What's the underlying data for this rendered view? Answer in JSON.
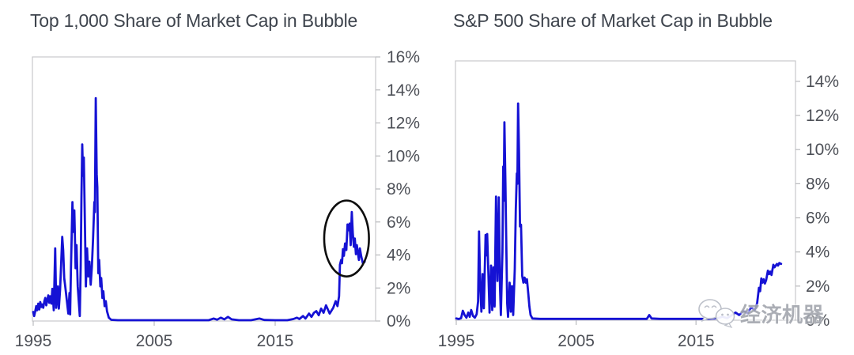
{
  "watermark": {
    "text": "经济机器",
    "icon": "wechat-icon",
    "color": "#a2a6ae"
  },
  "colors": {
    "background": "#ffffff",
    "line_blue": "#1512d4",
    "frame_gray": "#c7c8cb",
    "tick_gray": "#b9babd",
    "title_text": "#3e444d",
    "tick_text": "#4d5057",
    "annotation_black": "#0d0d0d"
  },
  "chart_data": [
    {
      "type": "line",
      "title": "Top 1,000 Share of Market Cap in Bubble",
      "line_color": "#1512d4",
      "x_range": [
        1995,
        2023.3
      ],
      "y_range_pct": [
        0,
        16
      ],
      "grid": false,
      "legend": "none",
      "y_ticks": [
        [
          0,
          "0%"
        ],
        [
          2,
          "2%"
        ],
        [
          4,
          "4%"
        ],
        [
          6,
          "6%"
        ],
        [
          8,
          "8%"
        ],
        [
          10,
          "10%"
        ],
        [
          12,
          "12%"
        ],
        [
          14,
          "14%"
        ],
        [
          16,
          "16%"
        ]
      ],
      "x_ticks": [
        [
          1995,
          "1995"
        ],
        [
          2005,
          "2005"
        ],
        [
          2015,
          "2015"
        ]
      ],
      "annotation": {
        "shape": "ellipse",
        "purpose": "highlights 2020-2022 rise in bubble share",
        "center_year": 2020.9,
        "center_pct": 5.0,
        "radius_years": 1.85,
        "radius_pct": 2.3,
        "color": "#0d0d0d"
      },
      "series": [
        [
          1995.0,
          0.55
        ],
        [
          1995.08,
          0.3
        ],
        [
          1995.17,
          0.6
        ],
        [
          1995.25,
          0.9
        ],
        [
          1995.33,
          0.65
        ],
        [
          1995.42,
          1.05
        ],
        [
          1995.5,
          0.7
        ],
        [
          1995.58,
          1.15
        ],
        [
          1995.67,
          0.85
        ],
        [
          1995.75,
          1.0
        ],
        [
          1995.83,
          0.8
        ],
        [
          1995.92,
          1.2
        ],
        [
          1996.0,
          1.4
        ],
        [
          1996.08,
          0.95
        ],
        [
          1996.17,
          1.3
        ],
        [
          1996.25,
          1.55
        ],
        [
          1996.33,
          1.1
        ],
        [
          1996.42,
          1.5
        ],
        [
          1996.5,
          1.05
        ],
        [
          1996.58,
          1.95
        ],
        [
          1996.7,
          0.65
        ],
        [
          1996.82,
          4.4
        ],
        [
          1996.9,
          0.8
        ],
        [
          1997.04,
          2.1
        ],
        [
          1997.12,
          0.75
        ],
        [
          1997.22,
          1.9
        ],
        [
          1997.4,
          5.1
        ],
        [
          1997.48,
          4.3
        ],
        [
          1997.56,
          2.6
        ],
        [
          1997.65,
          2.1
        ],
        [
          1997.9,
          0.45
        ],
        [
          1998.0,
          1.7
        ],
        [
          1998.05,
          0.4
        ],
        [
          1998.12,
          3.1
        ],
        [
          1998.24,
          7.2
        ],
        [
          1998.32,
          5.4
        ],
        [
          1998.4,
          6.7
        ],
        [
          1998.5,
          3.2
        ],
        [
          1998.58,
          4.6
        ],
        [
          1998.68,
          2.1
        ],
        [
          1998.85,
          0.3
        ],
        [
          1998.93,
          3.4
        ],
        [
          1998.99,
          7.5
        ],
        [
          1999.05,
          10.7
        ],
        [
          1999.12,
          8.8
        ],
        [
          1999.18,
          9.9
        ],
        [
          1999.28,
          5.5
        ],
        [
          1999.35,
          2.1
        ],
        [
          1999.45,
          4.4
        ],
        [
          1999.55,
          2.7
        ],
        [
          1999.65,
          3.6
        ],
        [
          1999.75,
          2.2
        ],
        [
          1999.85,
          3.3
        ],
        [
          1999.95,
          5.0
        ],
        [
          2000.05,
          7.2
        ],
        [
          2000.1,
          6.6
        ],
        [
          2000.17,
          13.5
        ],
        [
          2000.25,
          8.9
        ],
        [
          2000.3,
          8.1
        ],
        [
          2000.38,
          2.9
        ],
        [
          2000.45,
          3.7
        ],
        [
          2000.55,
          2.1
        ],
        [
          2000.62,
          2.6
        ],
        [
          2000.72,
          1.4
        ],
        [
          2000.8,
          1.8
        ],
        [
          2000.9,
          0.9
        ],
        [
          2001.0,
          1.2
        ],
        [
          2001.1,
          0.6
        ],
        [
          2001.25,
          0.2
        ],
        [
          2001.45,
          0.07
        ],
        [
          2002,
          0.05
        ],
        [
          2004,
          0.05
        ],
        [
          2006,
          0.05
        ],
        [
          2008,
          0.05
        ],
        [
          2009.5,
          0.05
        ],
        [
          2009.9,
          0.15
        ],
        [
          2010.2,
          0.08
        ],
        [
          2010.5,
          0.2
        ],
        [
          2010.8,
          0.1
        ],
        [
          2011.1,
          0.25
        ],
        [
          2011.4,
          0.1
        ],
        [
          2012,
          0.05
        ],
        [
          2013,
          0.05
        ],
        [
          2013.7,
          0.15
        ],
        [
          2014.1,
          0.06
        ],
        [
          2015,
          0.05
        ],
        [
          2016,
          0.05
        ],
        [
          2016.5,
          0.12
        ],
        [
          2016.8,
          0.2
        ],
        [
          2017.0,
          0.12
        ],
        [
          2017.3,
          0.3
        ],
        [
          2017.5,
          0.15
        ],
        [
          2017.8,
          0.45
        ],
        [
          2018.0,
          0.25
        ],
        [
          2018.2,
          0.5
        ],
        [
          2018.4,
          0.6
        ],
        [
          2018.6,
          0.35
        ],
        [
          2018.8,
          0.75
        ],
        [
          2019.0,
          0.5
        ],
        [
          2019.2,
          0.95
        ],
        [
          2019.5,
          0.45
        ],
        [
          2019.8,
          0.8
        ],
        [
          2020.0,
          1.2
        ],
        [
          2020.15,
          0.9
        ],
        [
          2020.28,
          1.5
        ],
        [
          2020.35,
          3.4
        ],
        [
          2020.45,
          3.7
        ],
        [
          2020.52,
          3.5
        ],
        [
          2020.6,
          4.35
        ],
        [
          2020.68,
          3.95
        ],
        [
          2020.78,
          4.7
        ],
        [
          2020.88,
          4.3
        ],
        [
          2020.98,
          5.85
        ],
        [
          2021.06,
          5.5
        ],
        [
          2021.15,
          5.9
        ],
        [
          2021.24,
          4.6
        ],
        [
          2021.33,
          6.6
        ],
        [
          2021.42,
          5.3
        ],
        [
          2021.5,
          4.5
        ],
        [
          2021.58,
          5.0
        ],
        [
          2021.67,
          4.05
        ],
        [
          2021.75,
          4.6
        ],
        [
          2021.83,
          4.15
        ],
        [
          2021.92,
          3.7
        ],
        [
          2022.0,
          4.4
        ],
        [
          2022.12,
          3.9
        ],
        [
          2022.25,
          3.5
        ],
        [
          2022.4,
          3.6
        ]
      ]
    },
    {
      "type": "line",
      "title": "S&P 500 Share of Market Cap in Bubble",
      "line_color": "#1512d4",
      "x_range": [
        1995,
        2023.3
      ],
      "y_range_pct": [
        0,
        15.2
      ],
      "grid": false,
      "legend": "none",
      "y_ticks": [
        [
          0,
          "0%"
        ],
        [
          2,
          "2%"
        ],
        [
          4,
          "4%"
        ],
        [
          6,
          "6%"
        ],
        [
          8,
          "8%"
        ],
        [
          10,
          "10%"
        ],
        [
          12,
          "12%"
        ],
        [
          14,
          "14%"
        ]
      ],
      "x_ticks": [
        [
          1995,
          "1995"
        ],
        [
          2005,
          "2005"
        ],
        [
          2015,
          "2015"
        ]
      ],
      "annotation": null,
      "series": [
        [
          1995.0,
          0.1
        ],
        [
          1995.2,
          0.07
        ],
        [
          1995.4,
          0.12
        ],
        [
          1995.55,
          0.55
        ],
        [
          1995.7,
          0.3
        ],
        [
          1995.85,
          0.15
        ],
        [
          1996.0,
          0.45
        ],
        [
          1996.12,
          0.2
        ],
        [
          1996.25,
          0.6
        ],
        [
          1996.4,
          0.25
        ],
        [
          1996.55,
          0.15
        ],
        [
          1996.7,
          0.35
        ],
        [
          1996.82,
          1.1
        ],
        [
          1996.9,
          5.2
        ],
        [
          1997.0,
          2.0
        ],
        [
          1997.1,
          0.5
        ],
        [
          1997.2,
          2.7
        ],
        [
          1997.3,
          0.7
        ],
        [
          1997.45,
          5.0
        ],
        [
          1997.52,
          3.8
        ],
        [
          1997.58,
          5.05
        ],
        [
          1997.68,
          2.8
        ],
        [
          1997.78,
          0.45
        ],
        [
          1997.9,
          3.2
        ],
        [
          1998.0,
          0.6
        ],
        [
          1998.1,
          3.1
        ],
        [
          1998.2,
          0.8
        ],
        [
          1998.32,
          7.25
        ],
        [
          1998.44,
          2.3
        ],
        [
          1998.55,
          7.2
        ],
        [
          1998.65,
          2.0
        ],
        [
          1998.72,
          0.3
        ],
        [
          1998.85,
          4.0
        ],
        [
          1998.92,
          9.0
        ],
        [
          1998.96,
          7.0
        ],
        [
          1999.02,
          11.6
        ],
        [
          1999.1,
          8.0
        ],
        [
          1999.16,
          5.0
        ],
        [
          1999.25,
          1.0
        ],
        [
          1999.32,
          0.2
        ],
        [
          1999.45,
          2.2
        ],
        [
          1999.55,
          0.5
        ],
        [
          1999.65,
          2.0
        ],
        [
          1999.75,
          0.3
        ],
        [
          1999.88,
          3.0
        ],
        [
          1999.97,
          6.5
        ],
        [
          2000.05,
          8.6
        ],
        [
          2000.1,
          8.0
        ],
        [
          2000.16,
          12.7
        ],
        [
          2000.24,
          9.8
        ],
        [
          2000.32,
          5.5
        ],
        [
          2000.4,
          5.6
        ],
        [
          2000.5,
          2.6
        ],
        [
          2000.6,
          2.2
        ],
        [
          2000.7,
          2.5
        ],
        [
          2000.8,
          2.2
        ],
        [
          2000.9,
          2.4
        ],
        [
          2001.0,
          1.6
        ],
        [
          2001.1,
          0.8
        ],
        [
          2001.2,
          0.3
        ],
        [
          2001.35,
          0.1
        ],
        [
          2002,
          0.08
        ],
        [
          2004,
          0.08
        ],
        [
          2006,
          0.08
        ],
        [
          2008,
          0.08
        ],
        [
          2010,
          0.08
        ],
        [
          2010.9,
          0.08
        ],
        [
          2011.1,
          0.3
        ],
        [
          2011.3,
          0.1
        ],
        [
          2012,
          0.08
        ],
        [
          2014,
          0.08
        ],
        [
          2016,
          0.08
        ],
        [
          2016.8,
          0.12
        ],
        [
          2017.2,
          0.2
        ],
        [
          2017.6,
          0.12
        ],
        [
          2018.0,
          0.3
        ],
        [
          2018.3,
          0.45
        ],
        [
          2018.6,
          0.3
        ],
        [
          2019.0,
          0.55
        ],
        [
          2019.3,
          0.4
        ],
        [
          2019.6,
          0.75
        ],
        [
          2019.9,
          0.6
        ],
        [
          2020.1,
          1.0
        ],
        [
          2020.25,
          1.9
        ],
        [
          2020.35,
          1.7
        ],
        [
          2020.45,
          2.45
        ],
        [
          2020.55,
          2.2
        ],
        [
          2020.65,
          2.4
        ],
        [
          2020.75,
          2.15
        ],
        [
          2020.85,
          2.35
        ],
        [
          2021.0,
          2.9
        ],
        [
          2021.1,
          2.7
        ],
        [
          2021.2,
          2.85
        ],
        [
          2021.3,
          2.65
        ],
        [
          2021.45,
          3.25
        ],
        [
          2021.55,
          3.1
        ],
        [
          2021.65,
          3.2
        ],
        [
          2021.75,
          3.3
        ],
        [
          2021.85,
          3.2
        ],
        [
          2021.95,
          3.35
        ],
        [
          2022.1,
          3.3
        ]
      ]
    }
  ]
}
